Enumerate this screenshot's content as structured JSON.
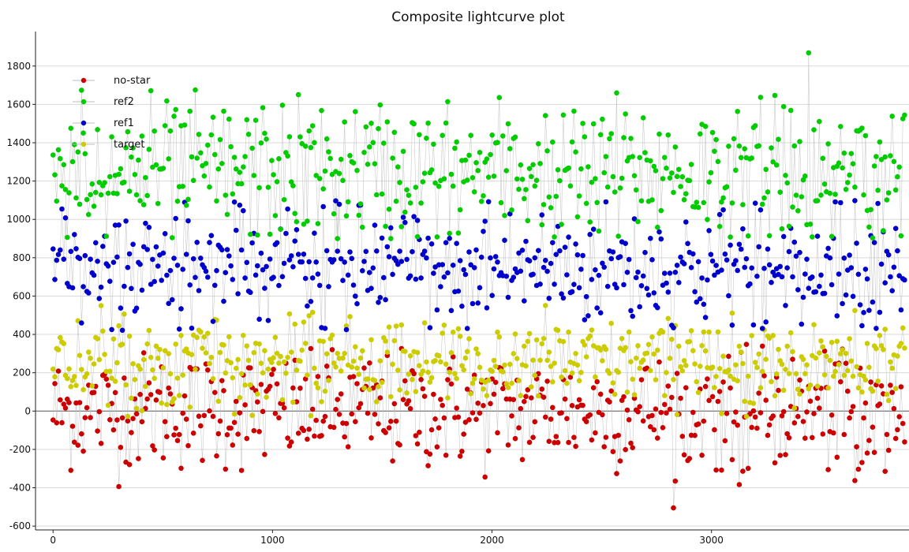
{
  "chart_data": {
    "type": "scatter",
    "title": "Composite lightcurve plot",
    "xlabel": "",
    "ylabel": "",
    "xlim": [
      -80,
      3900
    ],
    "ylim": [
      -620,
      1980
    ],
    "xticks": [
      0,
      1000,
      2000,
      3000
    ],
    "yticks": [
      -600,
      -400,
      -200,
      0,
      200,
      400,
      600,
      800,
      1000,
      1200,
      1400,
      1600,
      1800
    ],
    "grid": true,
    "connecting_lines": true,
    "legend_position": "top-left",
    "x_range_points": [
      0,
      3880
    ],
    "point_count_per_series": 480,
    "series": [
      {
        "name": "no-star",
        "color": "#cc0000",
        "marker": "circle",
        "mean": 0,
        "spread": 150,
        "min": -520,
        "max": 350
      },
      {
        "name": "ref2",
        "color": "#00cc00",
        "marker": "star",
        "mean": 1250,
        "spread": 180,
        "min": 900,
        "max": 1880
      },
      {
        "name": "ref1",
        "color": "#0000cc",
        "marker": "circle",
        "mean": 750,
        "spread": 160,
        "min": 420,
        "max": 1100
      },
      {
        "name": "target",
        "color": "#cccc00",
        "marker": "cross",
        "mean": 250,
        "spread": 110,
        "min": -30,
        "max": 560
      }
    ]
  }
}
